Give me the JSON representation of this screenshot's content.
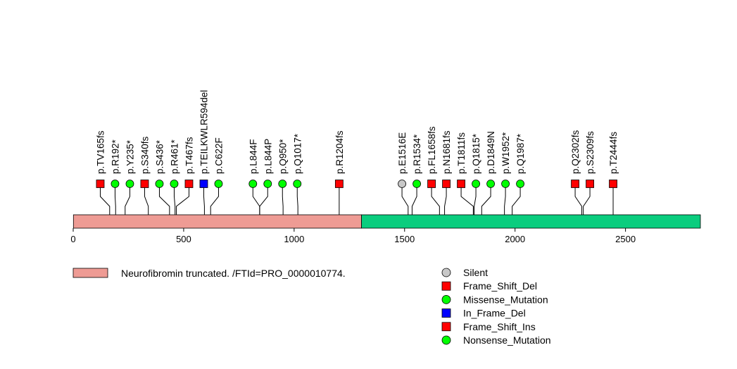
{
  "chart_data": {
    "type": "lollipop",
    "protein_length": 2839,
    "xlim": [
      0,
      2839
    ],
    "x_ticks": [
      0,
      500,
      1000,
      1500,
      2000,
      2500
    ],
    "domains": [
      {
        "name": "Neurofibromin truncated. /FTId=PRO_0000010774.",
        "start": 1,
        "end": 1305,
        "color": "#ee9b94"
      },
      {
        "name": "",
        "start": 1305,
        "end": 2839,
        "color": "#0acd7e"
      }
    ],
    "mutations": [
      {
        "label": "p.TV165fs",
        "pos": 165,
        "type": "Frame_Shift_Del"
      },
      {
        "label": "p.R192*",
        "pos": 192,
        "type": "Nonsense_Mutation"
      },
      {
        "label": "p.Y235*",
        "pos": 235,
        "type": "Nonsense_Mutation"
      },
      {
        "label": "p.S340fs",
        "pos": 340,
        "type": "Frame_Shift_Del"
      },
      {
        "label": "p.S436*",
        "pos": 436,
        "type": "Nonsense_Mutation"
      },
      {
        "label": "p.R461*",
        "pos": 461,
        "type": "Nonsense_Mutation"
      },
      {
        "label": "p.T467fs",
        "pos": 467,
        "type": "Frame_Shift_Ins"
      },
      {
        "label": "p.TEILKWLR594del",
        "pos": 594,
        "type": "In_Frame_Del"
      },
      {
        "label": "p.C622F",
        "pos": 622,
        "type": "Missense_Mutation"
      },
      {
        "label": "p.L844F",
        "pos": 844,
        "type": "Missense_Mutation"
      },
      {
        "label": "p.L844P",
        "pos": 844,
        "type": "Missense_Mutation"
      },
      {
        "label": "p.Q950*",
        "pos": 950,
        "type": "Nonsense_Mutation"
      },
      {
        "label": "p.Q1017*",
        "pos": 1017,
        "type": "Nonsense_Mutation"
      },
      {
        "label": "p.R1204fs",
        "pos": 1204,
        "type": "Frame_Shift_Del"
      },
      {
        "label": "p.E1516E",
        "pos": 1516,
        "type": "Silent"
      },
      {
        "label": "p.R1534*",
        "pos": 1534,
        "type": "Nonsense_Mutation"
      },
      {
        "label": "p.FL1658fs",
        "pos": 1658,
        "type": "Frame_Shift_Del"
      },
      {
        "label": "p.N1681fs",
        "pos": 1681,
        "type": "Frame_Shift_Del"
      },
      {
        "label": "p.T1811fs",
        "pos": 1811,
        "type": "Frame_Shift_Del"
      },
      {
        "label": "p.Q1815*",
        "pos": 1815,
        "type": "Nonsense_Mutation"
      },
      {
        "label": "p.D1849N",
        "pos": 1849,
        "type": "Missense_Mutation"
      },
      {
        "label": "p.W1952*",
        "pos": 1952,
        "type": "Nonsense_Mutation"
      },
      {
        "label": "p.Q1987*",
        "pos": 1987,
        "type": "Nonsense_Mutation"
      },
      {
        "label": "p.Q2302fs",
        "pos": 2302,
        "type": "Frame_Shift_Del"
      },
      {
        "label": "p.S2309fs",
        "pos": 2309,
        "type": "Frame_Shift_Del"
      },
      {
        "label": "p.T2444fs",
        "pos": 2444,
        "type": "Frame_Shift_Del"
      }
    ],
    "legend": {
      "domain_entry": "Neurofibromin truncated. /FTId=PRO_0000010774.",
      "mutation_types": [
        {
          "name": "Silent",
          "shape": "circle",
          "color": "#c8c8c8"
        },
        {
          "name": "Frame_Shift_Del",
          "shape": "square",
          "color": "#ff0000"
        },
        {
          "name": "Missense_Mutation",
          "shape": "circle",
          "color": "#00ff00"
        },
        {
          "name": "In_Frame_Del",
          "shape": "square",
          "color": "#0000ff"
        },
        {
          "name": "Frame_Shift_Ins",
          "shape": "square",
          "color": "#ff0000"
        },
        {
          "name": "Nonsense_Mutation",
          "shape": "circle",
          "color": "#00ff00"
        }
      ]
    }
  }
}
